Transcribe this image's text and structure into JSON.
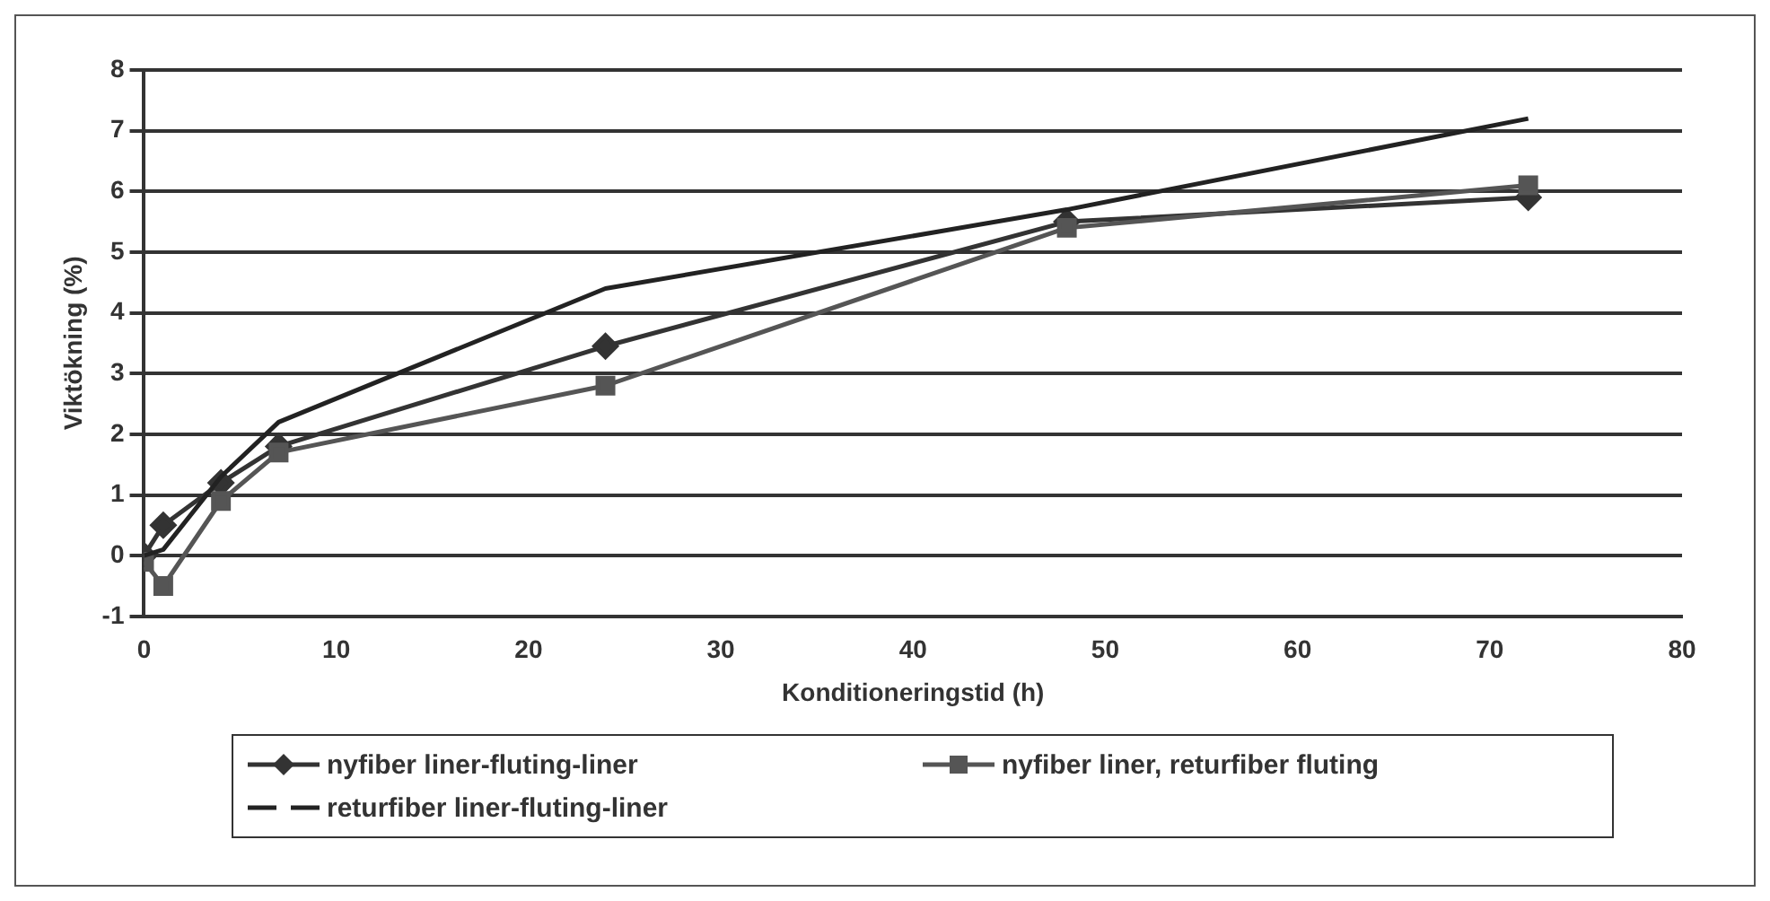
{
  "chart_data": {
    "type": "line",
    "xlabel": "Konditioneringstid (h)",
    "ylabel": "Viktökning (%)",
    "xlim": [
      0,
      80
    ],
    "xticks": [
      0,
      10,
      20,
      30,
      40,
      50,
      60,
      70,
      80
    ],
    "ylim": [
      -1,
      8
    ],
    "yticks": [
      -1,
      0,
      1,
      2,
      3,
      4,
      5,
      6,
      7,
      8
    ],
    "grid": "y",
    "legend": "bottom",
    "series": [
      {
        "name": "nyfiber liner-fluting-liner",
        "color": "#333333",
        "marker": "diamond",
        "x": [
          0,
          1,
          4,
          7,
          24,
          48,
          72
        ],
        "values": [
          0,
          0.5,
          1.2,
          1.8,
          3.45,
          5.5,
          5.9
        ]
      },
      {
        "name": "nyfiber liner, returfiber fluting",
        "color": "#555555",
        "marker": "square",
        "x": [
          0,
          1,
          4,
          7,
          24,
          48,
          72
        ],
        "values": [
          -0.1,
          -0.5,
          0.9,
          1.7,
          2.8,
          5.4,
          6.1
        ]
      },
      {
        "name": "returfiber liner-fluting-liner",
        "color": "#222222",
        "marker": "none",
        "x": [
          0,
          1,
          4,
          7,
          24,
          48,
          72
        ],
        "values": [
          0,
          0.1,
          1.3,
          2.2,
          4.4,
          5.7,
          7.2
        ]
      }
    ]
  }
}
